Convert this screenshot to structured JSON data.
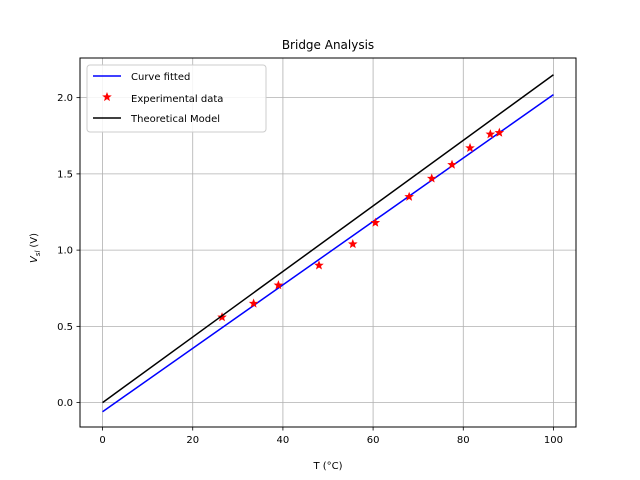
{
  "chart_data": {
    "type": "line",
    "title": "Bridge Analysis",
    "xlabel": "T (°C)",
    "ylabel_main": "V",
    "ylabel_sub": "sl",
    "ylabel_unit": "(V)",
    "xlim": [
      -5,
      105
    ],
    "ylim": [
      -0.16,
      2.26
    ],
    "xticks": [
      0,
      20,
      40,
      60,
      80,
      100
    ],
    "yticks": [
      0.0,
      0.5,
      1.0,
      1.5,
      2.0
    ],
    "xtick_labels": [
      "0",
      "20",
      "40",
      "60",
      "80",
      "100"
    ],
    "ytick_labels": [
      "0.0",
      "0.5",
      "1.0",
      "1.5",
      "2.0"
    ],
    "grid": true,
    "legend_position": "top-left",
    "series": [
      {
        "name": "Curve fitted",
        "kind": "line",
        "color": "#0000ff",
        "x": [
          0,
          100
        ],
        "y": [
          -0.06,
          2.02
        ]
      },
      {
        "name": "Experimental data",
        "kind": "marker",
        "color": "#ff0000",
        "marker": "star",
        "x": [
          26.5,
          33.5,
          39.0,
          48.0,
          55.5,
          60.5,
          68.0,
          73.0,
          77.5,
          81.5,
          86.0,
          88.0
        ],
        "y": [
          0.56,
          0.65,
          0.77,
          0.9,
          1.04,
          1.18,
          1.35,
          1.47,
          1.56,
          1.67,
          1.76,
          1.77
        ]
      },
      {
        "name": "Theoretical Model",
        "kind": "line",
        "color": "#000000",
        "x": [
          0,
          100
        ],
        "y": [
          0.0,
          2.15
        ]
      }
    ]
  }
}
